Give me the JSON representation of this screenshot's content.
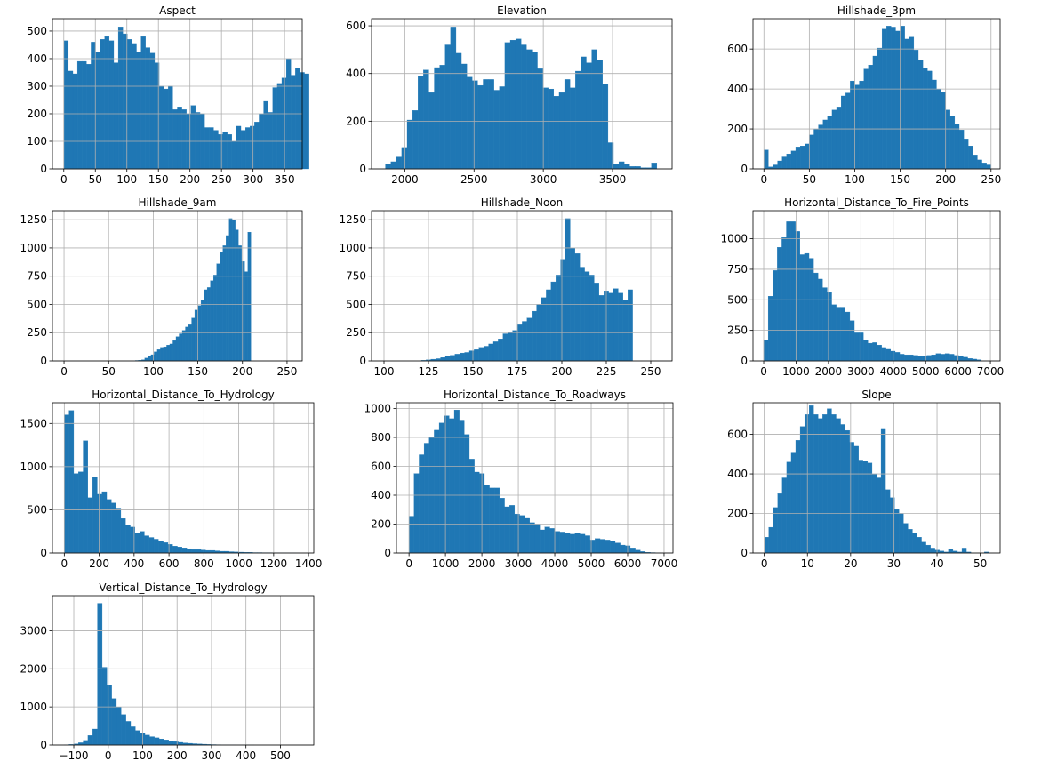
{
  "figure": {
    "bar_color": "#1f77b4",
    "grid_color": "#b0b0b0",
    "background": "#ffffff"
  },
  "chart_data": [
    {
      "type": "bar",
      "title": "Aspect",
      "grid": true,
      "xlim": [
        -18,
        378
      ],
      "ylim": [
        0,
        545
      ],
      "xticks": [
        0,
        50,
        100,
        150,
        200,
        250,
        300,
        350
      ],
      "yticks": [
        0,
        100,
        200,
        300,
        400,
        500
      ],
      "bin_start": 0,
      "bin_width": 7.2,
      "values": [
        465,
        355,
        345,
        390,
        390,
        380,
        460,
        425,
        470,
        480,
        465,
        385,
        515,
        490,
        470,
        455,
        425,
        480,
        440,
        420,
        385,
        300,
        290,
        300,
        215,
        225,
        215,
        200,
        230,
        205,
        200,
        150,
        150,
        140,
        125,
        135,
        125,
        100,
        155,
        140,
        150,
        155,
        170,
        200,
        245,
        205,
        295,
        310,
        330,
        400,
        340,
        365,
        350,
        345
      ]
    },
    {
      "type": "bar",
      "title": "Elevation",
      "grid": true,
      "xlim": [
        1760,
        3930
      ],
      "ylim": [
        0,
        630
      ],
      "xticks": [
        2000,
        2500,
        3000,
        3500
      ],
      "yticks": [
        0,
        200,
        400,
        600
      ],
      "bin_start": 1860,
      "bin_width": 39.2,
      "values": [
        20,
        30,
        50,
        90,
        205,
        245,
        390,
        415,
        320,
        425,
        435,
        520,
        595,
        485,
        440,
        385,
        370,
        350,
        375,
        375,
        330,
        345,
        530,
        540,
        545,
        520,
        500,
        490,
        420,
        340,
        335,
        305,
        320,
        375,
        340,
        410,
        470,
        445,
        500,
        455,
        355,
        110,
        20,
        30,
        20,
        10,
        10,
        5,
        5,
        25
      ]
    },
    {
      "type": "bar",
      "title": "Hillshade_3pm",
      "grid": true,
      "xlim": [
        -12,
        260
      ],
      "ylim": [
        0,
        752
      ],
      "xticks": [
        0,
        50,
        100,
        150,
        200,
        250
      ],
      "yticks": [
        0,
        200,
        400,
        600
      ],
      "bin_start": 0,
      "bin_width": 5,
      "values": [
        95,
        10,
        20,
        40,
        60,
        75,
        90,
        110,
        115,
        125,
        170,
        200,
        220,
        245,
        265,
        295,
        310,
        365,
        380,
        440,
        420,
        440,
        500,
        520,
        565,
        605,
        700,
        715,
        710,
        690,
        715,
        650,
        660,
        595,
        545,
        505,
        490,
        445,
        400,
        385,
        295,
        265,
        225,
        195,
        150,
        115,
        70,
        45,
        30,
        20
      ]
    },
    {
      "type": "bar",
      "title": "Hillshade_9am",
      "grid": true,
      "xlim": [
        -13,
        267
      ],
      "ylim": [
        0,
        1330
      ],
      "xticks": [
        0,
        50,
        100,
        150,
        200,
        250
      ],
      "yticks": [
        0,
        250,
        500,
        750,
        1000,
        1250
      ],
      "bin_start": 80,
      "bin_width": 3.5,
      "values": [
        4,
        6,
        10,
        25,
        40,
        55,
        80,
        100,
        120,
        125,
        140,
        150,
        180,
        215,
        240,
        270,
        300,
        320,
        380,
        450,
        490,
        540,
        630,
        650,
        710,
        760,
        860,
        960,
        1020,
        1110,
        1260,
        1250,
        1160,
        1020,
        880,
        790,
        1140
      ]
    },
    {
      "type": "bar",
      "title": "Hillshade_Noon",
      "grid": true,
      "xlim": [
        93,
        262
      ],
      "ylim": [
        0,
        1330
      ],
      "xticks": [
        100,
        125,
        150,
        175,
        200,
        225,
        250
      ],
      "yticks": [
        0,
        250,
        500,
        750,
        1000,
        1250
      ],
      "bin_start": 121,
      "bin_width": 2.7,
      "values": [
        5,
        10,
        15,
        20,
        30,
        40,
        50,
        60,
        70,
        75,
        90,
        100,
        120,
        130,
        150,
        170,
        195,
        240,
        255,
        270,
        320,
        350,
        380,
        440,
        500,
        560,
        630,
        700,
        760,
        900,
        1260,
        1000,
        950,
        830,
        790,
        760,
        690,
        580,
        620,
        600,
        640,
        600,
        540,
        630
      ]
    },
    {
      "type": "bar",
      "title": "Horizontal_Distance_To_Fire_Points",
      "grid": true,
      "xlim": [
        -330,
        7300
      ],
      "ylim": [
        0,
        1230
      ],
      "xticks": [
        0,
        1000,
        2000,
        3000,
        4000,
        5000,
        6000,
        7000
      ],
      "yticks": [
        0,
        250,
        500,
        750,
        1000
      ],
      "bin_start": 0,
      "bin_width": 140,
      "values": [
        170,
        530,
        740,
        930,
        1010,
        1140,
        1140,
        1060,
        870,
        880,
        840,
        720,
        670,
        600,
        560,
        460,
        440,
        440,
        400,
        330,
        230,
        230,
        170,
        145,
        150,
        130,
        110,
        95,
        80,
        70,
        55,
        50,
        50,
        45,
        40,
        40,
        45,
        50,
        60,
        55,
        60,
        55,
        45,
        40,
        30,
        20,
        15,
        10
      ]
    },
    {
      "type": "bar",
      "title": "Horizontal_Distance_To_Hydrology",
      "grid": true,
      "xlim": [
        -68,
        1430
      ],
      "ylim": [
        0,
        1740
      ],
      "xticks": [
        0,
        200,
        400,
        600,
        800,
        1000,
        1200,
        1400
      ],
      "yticks": [
        0,
        500,
        1000,
        1500
      ],
      "bin_start": 0,
      "bin_width": 27,
      "values": [
        1600,
        1650,
        920,
        940,
        1300,
        640,
        880,
        680,
        710,
        620,
        580,
        520,
        400,
        320,
        300,
        230,
        250,
        200,
        180,
        160,
        140,
        120,
        100,
        80,
        70,
        60,
        50,
        40,
        40,
        35,
        30,
        30,
        25,
        20,
        20,
        15,
        12,
        10,
        8,
        8,
        5,
        5,
        4,
        4,
        3,
        3,
        2,
        2,
        2,
        1
      ]
    },
    {
      "type": "bar",
      "title": "Horizontal_Distance_To_Roadways",
      "grid": true,
      "xlim": [
        -345,
        7245
      ],
      "ylim": [
        0,
        1040
      ],
      "xticks": [
        0,
        1000,
        2000,
        3000,
        4000,
        5000,
        6000,
        7000
      ],
      "yticks": [
        0,
        200,
        400,
        600,
        800,
        1000
      ],
      "bin_start": 0,
      "bin_width": 138,
      "values": [
        255,
        550,
        680,
        760,
        800,
        850,
        900,
        950,
        930,
        990,
        920,
        820,
        650,
        560,
        550,
        470,
        450,
        450,
        380,
        320,
        330,
        270,
        260,
        240,
        210,
        200,
        160,
        180,
        170,
        150,
        145,
        140,
        130,
        140,
        130,
        120,
        90,
        100,
        95,
        90,
        80,
        70,
        55,
        50,
        35,
        20,
        10,
        5,
        3,
        2
      ]
    },
    {
      "type": "bar",
      "title": "Slope",
      "grid": true,
      "xlim": [
        -2.6,
        54.6
      ],
      "ylim": [
        0,
        760
      ],
      "xticks": [
        0,
        10,
        20,
        30,
        40,
        50
      ],
      "yticks": [
        0,
        200,
        400,
        600
      ],
      "bin_start": 0,
      "bin_width": 1.04,
      "values": [
        80,
        130,
        230,
        300,
        380,
        460,
        510,
        570,
        640,
        700,
        745,
        700,
        680,
        700,
        730,
        700,
        680,
        650,
        620,
        560,
        540,
        470,
        465,
        455,
        400,
        380,
        630,
        320,
        280,
        220,
        200,
        150,
        120,
        100,
        80,
        55,
        40,
        25,
        15,
        10,
        5,
        20,
        10,
        5,
        25,
        5,
        0,
        0,
        0,
        5
      ]
    },
    {
      "type": "bar",
      "title": "Vertical_Distance_To_Hydrology",
      "grid": true,
      "xlim": [
        -162,
        597
      ],
      "ylim": [
        0,
        3920
      ],
      "xticks": [
        -100,
        0,
        100,
        200,
        300,
        400,
        500
      ],
      "yticks": [
        0,
        1000,
        2000,
        3000
      ],
      "bin_start": -128,
      "bin_width": 13.8,
      "values": [
        5,
        15,
        30,
        60,
        120,
        250,
        420,
        3720,
        2040,
        1580,
        1220,
        1000,
        800,
        620,
        480,
        380,
        310,
        260,
        220,
        190,
        160,
        135,
        110,
        90,
        70,
        55,
        45,
        35,
        28,
        22,
        16,
        12,
        9,
        7,
        5,
        4,
        3,
        2,
        2,
        1
      ]
    }
  ]
}
